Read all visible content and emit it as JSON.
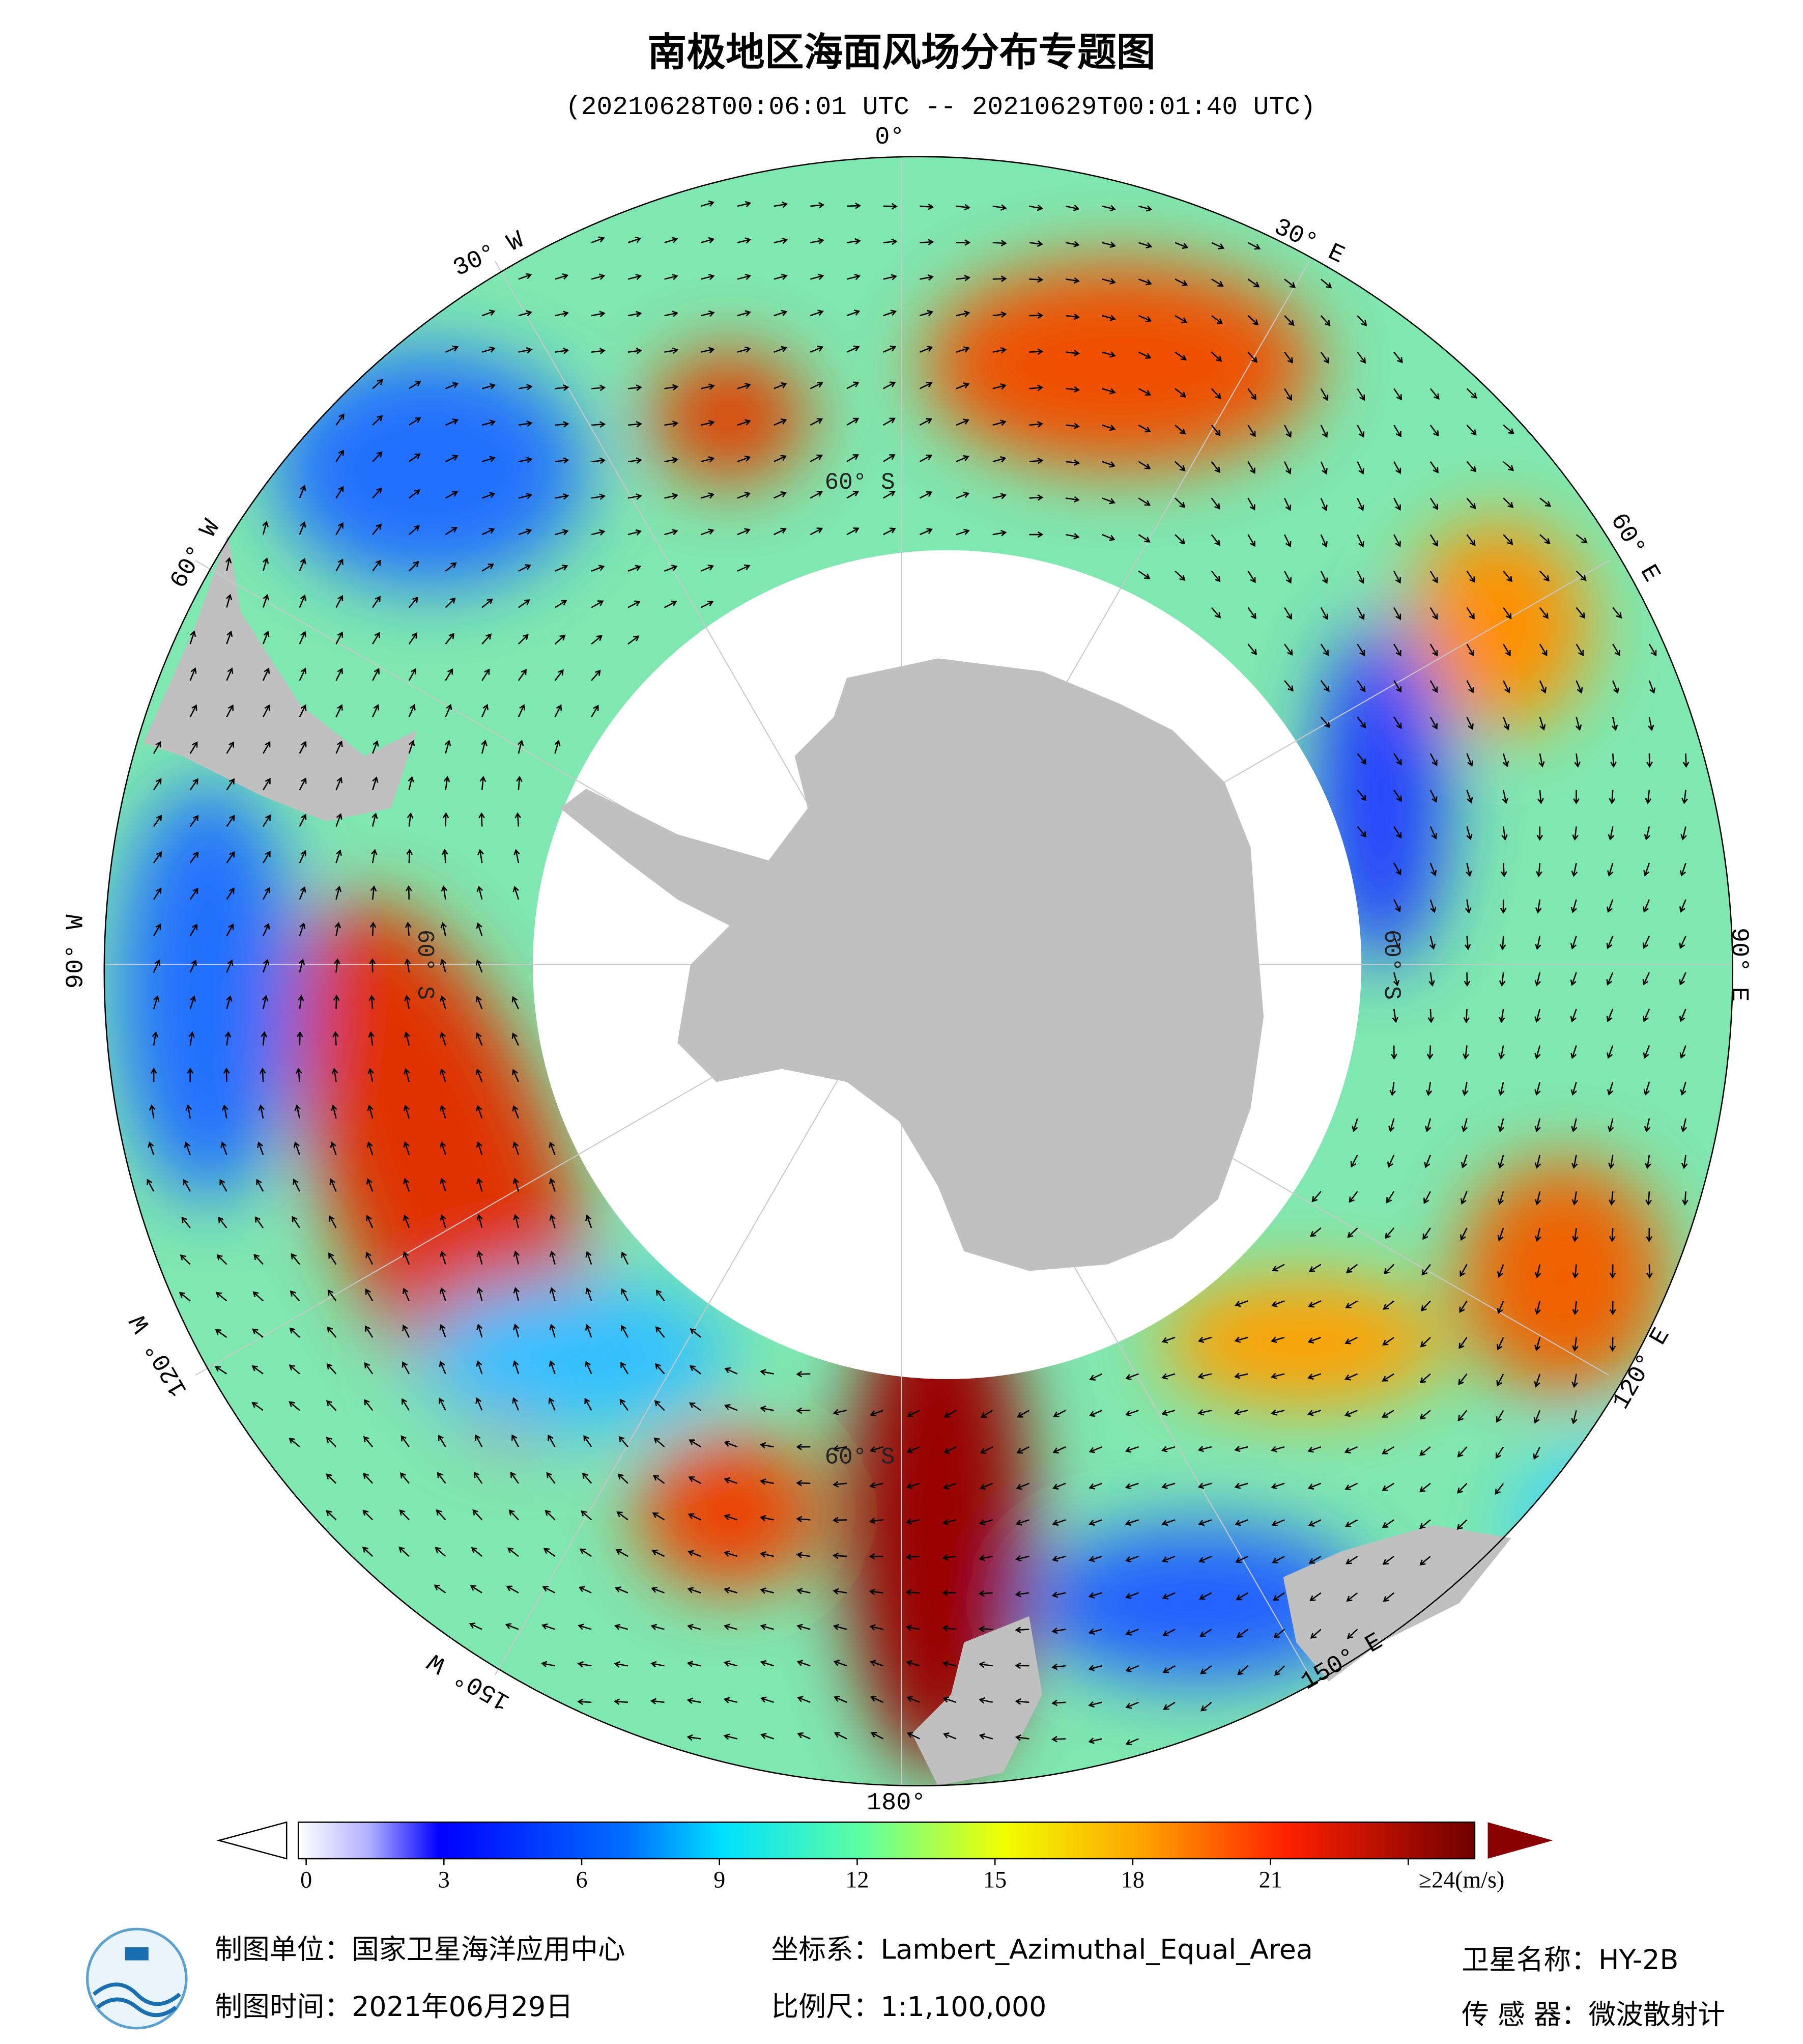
{
  "header": {
    "title": "南极地区海面风场分布专题图",
    "subtitle": "(20210628T00:06:01 UTC -- 20210629T00:01:40 UTC)"
  },
  "map": {
    "lon_labels": [
      "0°",
      "30° E",
      "60° E",
      "90° E",
      "120° E",
      "150° E",
      "180°",
      "150° W",
      "120° W",
      "90° W",
      "60° W",
      "30° W"
    ],
    "lat_label": "60° S"
  },
  "colorbar": {
    "range": [
      0,
      24
    ],
    "ticks": [
      0,
      3,
      6,
      9,
      12,
      15,
      18,
      21,
      {
        "value": 24,
        "label": "≥24(m/s)"
      }
    ]
  },
  "footer": {
    "producer": "制图单位：国家卫星海洋应用中心",
    "date": "制图时间：2021年06月29日",
    "projection": "坐标系：Lambert_Azimuthal_Equal_Area",
    "scale": "比例尺：1:1,100,000",
    "satellite": "卫星名称：HY-2B",
    "sensor": "传 感 器：微波散射计"
  }
}
